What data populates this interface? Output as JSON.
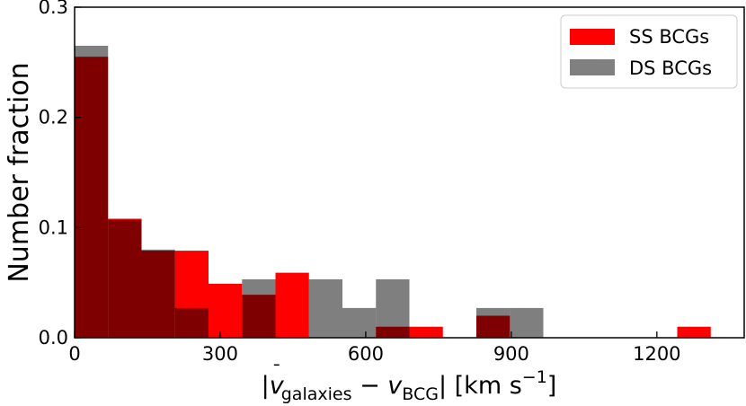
{
  "chart_data": {
    "type": "bar",
    "xlabel_parts": {
      "open": "|",
      "v": "v",
      "bar": "¯",
      "sub1": "galaxies",
      "minus": " − ",
      "sub2": "BCG",
      "close": "| [km s",
      "exp": "−1",
      "end": "]"
    },
    "ylabel": "Number fraction",
    "xlim": [
      0,
      1380
    ],
    "ylim": [
      0,
      0.3
    ],
    "xticks": [
      0,
      300,
      600,
      900,
      1200
    ],
    "yticks": [
      0.0,
      0.1,
      0.2,
      0.3
    ],
    "xtick_labels": [
      "0",
      "300",
      "600",
      "900",
      "1200"
    ],
    "ytick_labels": [
      "0.0",
      "0.1",
      "0.2",
      "0.3"
    ],
    "bin_edges": [
      0,
      69,
      138,
      207,
      276,
      345,
      414,
      483,
      552,
      621,
      690,
      759,
      828,
      897,
      966,
      1035,
      1104,
      1173,
      1242,
      1311
    ],
    "series": [
      {
        "name": "SS BCGs",
        "color": "#ff0000",
        "alpha": 1.0,
        "values": [
          0.255,
          0.108,
          0.079,
          0.079,
          0.049,
          0.039,
          0.059,
          0.0,
          0.0,
          0.01,
          0.01,
          0.0,
          0.02,
          0.0,
          0.0,
          0.0,
          0.0,
          0.0,
          0.01
        ]
      },
      {
        "name": "DS BCGs",
        "color": "#000000",
        "alpha": 0.5,
        "values": [
          0.265,
          0.107,
          0.08,
          0.027,
          0.0,
          0.053,
          0.0,
          0.053,
          0.027,
          0.053,
          0.0,
          0.0,
          0.027,
          0.027,
          0.0,
          0.0,
          0.0,
          0.0,
          0.0
        ]
      }
    ],
    "legend": {
      "placement": "top-right",
      "entries": [
        {
          "label": "SS BCGs",
          "color": "#ff0000"
        },
        {
          "label": "DS BCGs",
          "color": "#808080"
        }
      ]
    },
    "grid": false
  }
}
